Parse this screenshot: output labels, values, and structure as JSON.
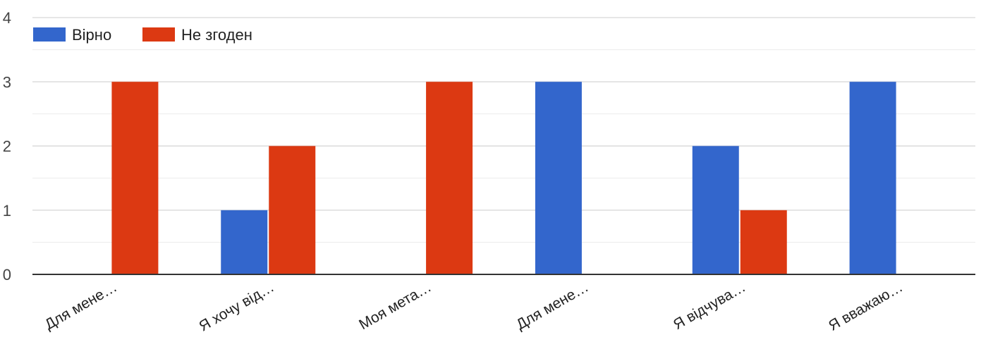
{
  "chart_data": {
    "type": "bar",
    "categories": [
      "Для мене…",
      "Я хочу від…",
      "Моя мета…",
      "Для мене…",
      "Я відчува…",
      "Я вважаю…"
    ],
    "series": [
      {
        "name": "Вірно",
        "color": "#3366cc",
        "values": [
          0,
          1,
          0,
          3,
          2,
          3
        ]
      },
      {
        "name": "Не згоден",
        "color": "#dc3912",
        "values": [
          3,
          2,
          3,
          0,
          1,
          0
        ]
      }
    ],
    "ylim": [
      0,
      4
    ],
    "yticks": [
      "0",
      "1",
      "2",
      "3",
      "4"
    ],
    "grid": true,
    "legend_position": "top-left"
  }
}
